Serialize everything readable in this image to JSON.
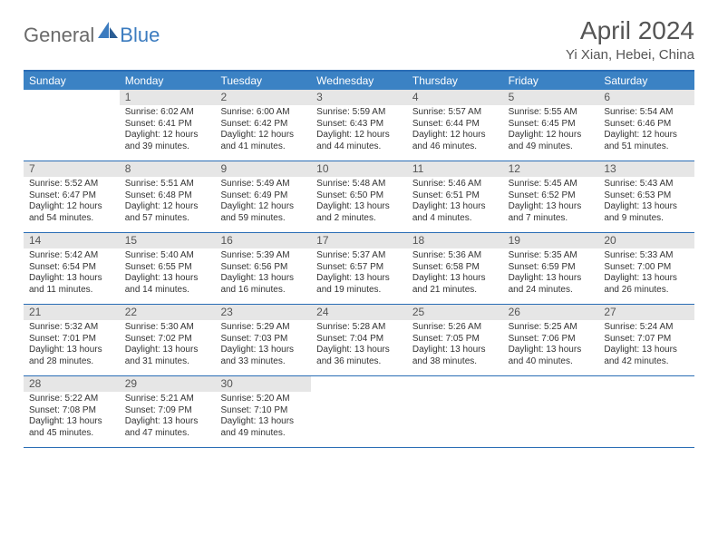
{
  "logo": {
    "part1": "General",
    "part2": "Blue"
  },
  "title": "April 2024",
  "location": "Yi Xian, Hebei, China",
  "colors": {
    "header_bg": "#3b82c4",
    "header_border": "#2a6db5",
    "daynum_bg": "#e6e6e6",
    "text": "#333333",
    "title_text": "#555555",
    "logo_gray": "#6a6a6a",
    "logo_blue": "#3b7bbf"
  },
  "day_labels": [
    "Sunday",
    "Monday",
    "Tuesday",
    "Wednesday",
    "Thursday",
    "Friday",
    "Saturday"
  ],
  "weeks": [
    [
      {
        "blank": true
      },
      {
        "n": "1",
        "sr": "Sunrise: 6:02 AM",
        "ss": "Sunset: 6:41 PM",
        "dl": "Daylight: 12 hours and 39 minutes."
      },
      {
        "n": "2",
        "sr": "Sunrise: 6:00 AM",
        "ss": "Sunset: 6:42 PM",
        "dl": "Daylight: 12 hours and 41 minutes."
      },
      {
        "n": "3",
        "sr": "Sunrise: 5:59 AM",
        "ss": "Sunset: 6:43 PM",
        "dl": "Daylight: 12 hours and 44 minutes."
      },
      {
        "n": "4",
        "sr": "Sunrise: 5:57 AM",
        "ss": "Sunset: 6:44 PM",
        "dl": "Daylight: 12 hours and 46 minutes."
      },
      {
        "n": "5",
        "sr": "Sunrise: 5:55 AM",
        "ss": "Sunset: 6:45 PM",
        "dl": "Daylight: 12 hours and 49 minutes."
      },
      {
        "n": "6",
        "sr": "Sunrise: 5:54 AM",
        "ss": "Sunset: 6:46 PM",
        "dl": "Daylight: 12 hours and 51 minutes."
      }
    ],
    [
      {
        "n": "7",
        "sr": "Sunrise: 5:52 AM",
        "ss": "Sunset: 6:47 PM",
        "dl": "Daylight: 12 hours and 54 minutes."
      },
      {
        "n": "8",
        "sr": "Sunrise: 5:51 AM",
        "ss": "Sunset: 6:48 PM",
        "dl": "Daylight: 12 hours and 57 minutes."
      },
      {
        "n": "9",
        "sr": "Sunrise: 5:49 AM",
        "ss": "Sunset: 6:49 PM",
        "dl": "Daylight: 12 hours and 59 minutes."
      },
      {
        "n": "10",
        "sr": "Sunrise: 5:48 AM",
        "ss": "Sunset: 6:50 PM",
        "dl": "Daylight: 13 hours and 2 minutes."
      },
      {
        "n": "11",
        "sr": "Sunrise: 5:46 AM",
        "ss": "Sunset: 6:51 PM",
        "dl": "Daylight: 13 hours and 4 minutes."
      },
      {
        "n": "12",
        "sr": "Sunrise: 5:45 AM",
        "ss": "Sunset: 6:52 PM",
        "dl": "Daylight: 13 hours and 7 minutes."
      },
      {
        "n": "13",
        "sr": "Sunrise: 5:43 AM",
        "ss": "Sunset: 6:53 PM",
        "dl": "Daylight: 13 hours and 9 minutes."
      }
    ],
    [
      {
        "n": "14",
        "sr": "Sunrise: 5:42 AM",
        "ss": "Sunset: 6:54 PM",
        "dl": "Daylight: 13 hours and 11 minutes."
      },
      {
        "n": "15",
        "sr": "Sunrise: 5:40 AM",
        "ss": "Sunset: 6:55 PM",
        "dl": "Daylight: 13 hours and 14 minutes."
      },
      {
        "n": "16",
        "sr": "Sunrise: 5:39 AM",
        "ss": "Sunset: 6:56 PM",
        "dl": "Daylight: 13 hours and 16 minutes."
      },
      {
        "n": "17",
        "sr": "Sunrise: 5:37 AM",
        "ss": "Sunset: 6:57 PM",
        "dl": "Daylight: 13 hours and 19 minutes."
      },
      {
        "n": "18",
        "sr": "Sunrise: 5:36 AM",
        "ss": "Sunset: 6:58 PM",
        "dl": "Daylight: 13 hours and 21 minutes."
      },
      {
        "n": "19",
        "sr": "Sunrise: 5:35 AM",
        "ss": "Sunset: 6:59 PM",
        "dl": "Daylight: 13 hours and 24 minutes."
      },
      {
        "n": "20",
        "sr": "Sunrise: 5:33 AM",
        "ss": "Sunset: 7:00 PM",
        "dl": "Daylight: 13 hours and 26 minutes."
      }
    ],
    [
      {
        "n": "21",
        "sr": "Sunrise: 5:32 AM",
        "ss": "Sunset: 7:01 PM",
        "dl": "Daylight: 13 hours and 28 minutes."
      },
      {
        "n": "22",
        "sr": "Sunrise: 5:30 AM",
        "ss": "Sunset: 7:02 PM",
        "dl": "Daylight: 13 hours and 31 minutes."
      },
      {
        "n": "23",
        "sr": "Sunrise: 5:29 AM",
        "ss": "Sunset: 7:03 PM",
        "dl": "Daylight: 13 hours and 33 minutes."
      },
      {
        "n": "24",
        "sr": "Sunrise: 5:28 AM",
        "ss": "Sunset: 7:04 PM",
        "dl": "Daylight: 13 hours and 36 minutes."
      },
      {
        "n": "25",
        "sr": "Sunrise: 5:26 AM",
        "ss": "Sunset: 7:05 PM",
        "dl": "Daylight: 13 hours and 38 minutes."
      },
      {
        "n": "26",
        "sr": "Sunrise: 5:25 AM",
        "ss": "Sunset: 7:06 PM",
        "dl": "Daylight: 13 hours and 40 minutes."
      },
      {
        "n": "27",
        "sr": "Sunrise: 5:24 AM",
        "ss": "Sunset: 7:07 PM",
        "dl": "Daylight: 13 hours and 42 minutes."
      }
    ],
    [
      {
        "n": "28",
        "sr": "Sunrise: 5:22 AM",
        "ss": "Sunset: 7:08 PM",
        "dl": "Daylight: 13 hours and 45 minutes."
      },
      {
        "n": "29",
        "sr": "Sunrise: 5:21 AM",
        "ss": "Sunset: 7:09 PM",
        "dl": "Daylight: 13 hours and 47 minutes."
      },
      {
        "n": "30",
        "sr": "Sunrise: 5:20 AM",
        "ss": "Sunset: 7:10 PM",
        "dl": "Daylight: 13 hours and 49 minutes."
      },
      {
        "blank": true
      },
      {
        "blank": true
      },
      {
        "blank": true
      },
      {
        "blank": true
      }
    ]
  ]
}
